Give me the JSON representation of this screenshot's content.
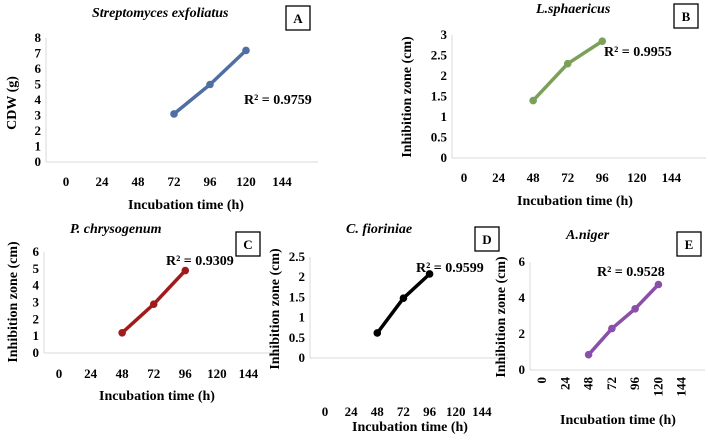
{
  "chart_data": [
    {
      "type": "line",
      "panel": "A",
      "title": "Streptomyces exfoliatus",
      "xlabel": "Incubation time (h)",
      "ylabel": "CDW (g)",
      "categories": [
        "0",
        "24",
        "48",
        "72",
        "96",
        "120",
        "144"
      ],
      "ylim": [
        0,
        8
      ],
      "yticks": [
        "0",
        "1",
        "2",
        "3",
        "4",
        "5",
        "6",
        "7",
        "8"
      ],
      "x": [
        72,
        96,
        120
      ],
      "values": [
        3.1,
        5.0,
        7.2
      ],
      "r2": "R² = 0.9759",
      "color": "#4f6fa3"
    },
    {
      "type": "line",
      "panel": "B",
      "title": "L.sphaericus",
      "xlabel": "Incubation time (h)",
      "ylabel": "Inhibition zone (cm)",
      "categories": [
        "0",
        "24",
        "48",
        "72",
        "96",
        "120",
        "144"
      ],
      "ylim": [
        0,
        3
      ],
      "yticks": [
        "0",
        "0.5",
        "1",
        "1.5",
        "2",
        "2.5",
        "3"
      ],
      "x": [
        48,
        72,
        96
      ],
      "values": [
        1.4,
        2.3,
        2.85
      ],
      "r2": "R² = 0.9955",
      "color": "#7aa05a"
    },
    {
      "type": "line",
      "panel": "C",
      "title": "P. chrysogenum",
      "xlabel": "Incubation time (h)",
      "ylabel": "Inhibition zone (cm)",
      "categories": [
        "0",
        "24",
        "48",
        "72",
        "96",
        "120",
        "144"
      ],
      "ylim": [
        0,
        6
      ],
      "yticks": [
        "0",
        "1",
        "2",
        "3",
        "4",
        "5",
        "6"
      ],
      "x": [
        48,
        72,
        96
      ],
      "values": [
        1.2,
        2.9,
        4.9
      ],
      "r2": "R² = 0.9309",
      "color": "#a01c1c"
    },
    {
      "type": "line",
      "panel": "D",
      "title": "C. fioriniae",
      "xlabel": "Incubation time (h)",
      "ylabel": "Inhibition zone (cm)",
      "categories": [
        "0",
        "24",
        "48",
        "72",
        "96",
        "120",
        "144"
      ],
      "ylim": [
        0,
        2.5
      ],
      "yticks": [
        "0",
        "0.5",
        "1",
        "1.5",
        "2",
        "2.5"
      ],
      "x": [
        48,
        72,
        96
      ],
      "values": [
        0.62,
        1.48,
        2.08
      ],
      "r2": "R² = 0.9599",
      "color": "#000000"
    },
    {
      "type": "line",
      "panel": "E",
      "title": "A.niger",
      "xlabel": "Incubation time (h)",
      "ylabel": "Inhibition zone (cm)",
      "categories": [
        "0",
        "24",
        "48",
        "72",
        "96",
        "120",
        "144"
      ],
      "ylim": [
        0,
        6
      ],
      "yticks": [
        "0",
        "2",
        "4",
        "6"
      ],
      "x": [
        48,
        72,
        96,
        120
      ],
      "values": [
        0.85,
        2.3,
        3.4,
        4.75
      ],
      "r2": "R² = 0.9528",
      "color": "#8a4fa8"
    }
  ]
}
